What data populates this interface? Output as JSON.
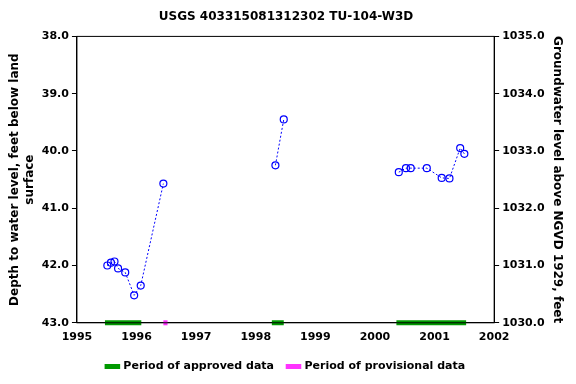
{
  "chart_data": {
    "type": "scatter",
    "title": "USGS 403315081312302 TU-104-W3D",
    "y_label": [
      "Depth to water level, feet below land",
      "surface"
    ],
    "y2_label": "Groundwater level above NGVD 1929, feet",
    "xlim": [
      1995,
      2002
    ],
    "xticks": [
      1995,
      1996,
      1997,
      1998,
      1999,
      2000,
      2001,
      2002
    ],
    "ylim": [
      38,
      43
    ],
    "yticks": [
      {
        "value": 38,
        "label": "38.0"
      },
      {
        "value": 39,
        "label": "39.0"
      },
      {
        "value": 40,
        "label": "40.0"
      },
      {
        "value": 41,
        "label": "41.0"
      },
      {
        "value": 42,
        "label": "42.0"
      },
      {
        "value": 43,
        "label": "43.0"
      }
    ],
    "y2lim": [
      1030,
      1035
    ],
    "y2ticks": [
      {
        "value": 1030,
        "label": "1030.0"
      },
      {
        "value": 1031,
        "label": "1031.0"
      },
      {
        "value": 1032,
        "label": "1032.0"
      },
      {
        "value": 1033,
        "label": "1033.0"
      },
      {
        "value": 1034,
        "label": "1034.0"
      },
      {
        "value": 1035,
        "label": "1035.0"
      }
    ],
    "grid": false,
    "legend": "bottom",
    "series": [
      {
        "color": "#0000ff",
        "marker": "circle",
        "line_style": "dotted",
        "x": [
          1995.51,
          1995.57,
          1995.63,
          1995.69,
          1995.81,
          1995.96,
          1996.07,
          1996.45
        ],
        "values": [
          42.0,
          41.95,
          41.93,
          42.05,
          42.12,
          42.52,
          42.35,
          40.57
        ]
      },
      {
        "color": "#0000ff",
        "marker": "circle",
        "line_style": "dotted",
        "x": [
          1998.33,
          1998.47
        ],
        "values": [
          40.25,
          39.45
        ]
      },
      {
        "color": "#0000ff",
        "marker": "circle",
        "line_style": "dotted",
        "x": [
          2000.4,
          2000.52,
          2000.6,
          2000.87,
          2001.12,
          2001.25,
          2001.43,
          2001.5
        ],
        "values": [
          40.37,
          40.3,
          40.3,
          40.3,
          40.47,
          40.48,
          39.95,
          40.05
        ]
      }
    ],
    "periods": [
      {
        "name": "Period of approved data",
        "color": "#009900",
        "ranges": [
          [
            1995.47,
            1996.08
          ],
          [
            1998.27,
            1998.47
          ],
          [
            2000.36,
            2001.53
          ]
        ]
      },
      {
        "name": "Period of provisional data",
        "color": "#ff33ff",
        "ranges": [
          [
            1996.45,
            1996.52
          ]
        ]
      }
    ]
  }
}
